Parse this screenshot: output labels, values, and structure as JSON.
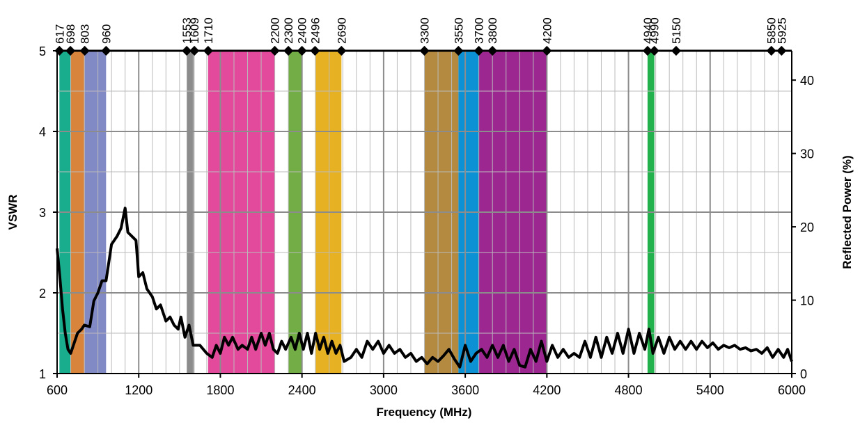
{
  "chart_data": {
    "type": "line",
    "xlabel": "Frequency (MHz)",
    "ylabel": "VSWR",
    "y2label": "Reflected Power (%)",
    "xlim": [
      600,
      6000
    ],
    "xticks": [
      600,
      1200,
      1800,
      2400,
      3000,
      3600,
      4200,
      4800,
      5400,
      6000
    ],
    "ylim": [
      1,
      5
    ],
    "yticks": [
      1,
      2,
      3,
      4,
      5
    ],
    "y2lim": [
      0,
      44
    ],
    "y2ticks": [
      0,
      10,
      20,
      30,
      40
    ],
    "grid": true,
    "band_edges": [
      617,
      698,
      803,
      960,
      1553,
      1609,
      1710,
      2200,
      2300,
      2400,
      2496,
      2690,
      3300,
      3550,
      3700,
      3800,
      4200,
      4940,
      4990,
      5150,
      5850,
      5925
    ],
    "bands": [
      {
        "start": 617,
        "end": 698,
        "color": "#19ad8e"
      },
      {
        "start": 698,
        "end": 803,
        "color": "#d8843c"
      },
      {
        "start": 803,
        "end": 960,
        "color": "#828ac6"
      },
      {
        "start": 1553,
        "end": 1609,
        "color": "#8c8c8c"
      },
      {
        "start": 1710,
        "end": 2200,
        "color": "#e34a9b"
      },
      {
        "start": 2300,
        "end": 2400,
        "color": "#72ad45"
      },
      {
        "start": 2496,
        "end": 2690,
        "color": "#e6b122"
      },
      {
        "start": 3300,
        "end": 3550,
        "color": "#b38a40"
      },
      {
        "start": 3550,
        "end": 3700,
        "color": "#0d91d5"
      },
      {
        "start": 3700,
        "end": 4200,
        "color": "#9c2790"
      },
      {
        "start": 4940,
        "end": 4990,
        "color": "#22b14c"
      }
    ],
    "series": [
      {
        "name": "VSWR",
        "color": "#000000",
        "x": [
          600,
          620,
          640,
          660,
          680,
          700,
          720,
          750,
          780,
          800,
          840,
          870,
          900,
          930,
          960,
          1000,
          1040,
          1070,
          1100,
          1120,
          1150,
          1180,
          1200,
          1230,
          1260,
          1300,
          1330,
          1360,
          1400,
          1430,
          1460,
          1490,
          1510,
          1540,
          1570,
          1600,
          1650,
          1700,
          1740,
          1770,
          1800,
          1830,
          1860,
          1890,
          1930,
          1960,
          2000,
          2030,
          2060,
          2100,
          2130,
          2160,
          2190,
          2220,
          2250,
          2280,
          2320,
          2350,
          2380,
          2410,
          2440,
          2470,
          2500,
          2530,
          2560,
          2590,
          2620,
          2650,
          2680,
          2710,
          2760,
          2800,
          2840,
          2880,
          2920,
          2960,
          3000,
          3040,
          3080,
          3120,
          3160,
          3200,
          3240,
          3280,
          3320,
          3360,
          3400,
          3440,
          3480,
          3520,
          3560,
          3600,
          3640,
          3680,
          3720,
          3760,
          3800,
          3840,
          3880,
          3920,
          3960,
          4000,
          4040,
          4080,
          4120,
          4160,
          4200,
          4240,
          4280,
          4320,
          4360,
          4400,
          4440,
          4480,
          4520,
          4560,
          4600,
          4640,
          4680,
          4720,
          4760,
          4800,
          4840,
          4880,
          4920,
          4950,
          4980,
          5020,
          5060,
          5100,
          5140,
          5180,
          5220,
          5260,
          5300,
          5340,
          5380,
          5420,
          5460,
          5500,
          5540,
          5580,
          5620,
          5660,
          5700,
          5740,
          5780,
          5820,
          5860,
          5900,
          5940,
          5970,
          6000
        ],
        "values": [
          2.55,
          2.2,
          1.8,
          1.5,
          1.3,
          1.25,
          1.35,
          1.5,
          1.55,
          1.6,
          1.58,
          1.9,
          2.0,
          2.15,
          2.15,
          2.6,
          2.7,
          2.8,
          3.05,
          2.75,
          2.7,
          2.65,
          2.2,
          2.25,
          2.05,
          1.95,
          1.8,
          1.85,
          1.65,
          1.7,
          1.6,
          1.55,
          1.7,
          1.45,
          1.6,
          1.35,
          1.35,
          1.25,
          1.2,
          1.35,
          1.25,
          1.45,
          1.35,
          1.45,
          1.3,
          1.35,
          1.3,
          1.45,
          1.3,
          1.5,
          1.35,
          1.5,
          1.3,
          1.25,
          1.4,
          1.3,
          1.45,
          1.3,
          1.5,
          1.3,
          1.5,
          1.25,
          1.5,
          1.3,
          1.45,
          1.25,
          1.4,
          1.25,
          1.35,
          1.15,
          1.2,
          1.3,
          1.2,
          1.4,
          1.3,
          1.4,
          1.25,
          1.35,
          1.25,
          1.3,
          1.2,
          1.25,
          1.15,
          1.2,
          1.12,
          1.2,
          1.15,
          1.22,
          1.3,
          1.18,
          1.08,
          1.35,
          1.15,
          1.25,
          1.3,
          1.2,
          1.35,
          1.2,
          1.35,
          1.15,
          1.3,
          1.1,
          1.08,
          1.3,
          1.15,
          1.4,
          1.15,
          1.35,
          1.2,
          1.3,
          1.2,
          1.25,
          1.2,
          1.4,
          1.2,
          1.45,
          1.2,
          1.45,
          1.25,
          1.5,
          1.25,
          1.55,
          1.25,
          1.5,
          1.3,
          1.55,
          1.25,
          1.45,
          1.25,
          1.45,
          1.3,
          1.4,
          1.3,
          1.4,
          1.3,
          1.4,
          1.32,
          1.38,
          1.3,
          1.35,
          1.32,
          1.35,
          1.3,
          1.32,
          1.28,
          1.3,
          1.25,
          1.32,
          1.2,
          1.3,
          1.2,
          1.3,
          1.15
        ]
      }
    ]
  }
}
